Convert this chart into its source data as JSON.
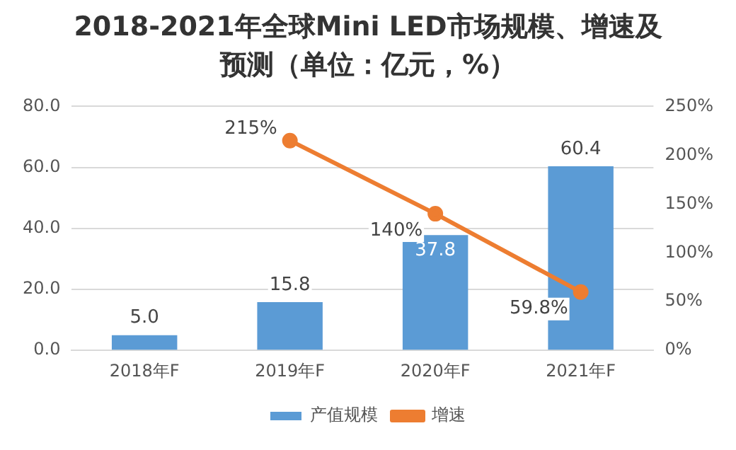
{
  "chart_data": {
    "type": "bar",
    "title": "2018-2021年全球Mini LED市场规模、增速及预测（单位：亿元，%）",
    "categories": [
      "2018年F",
      "2019年F",
      "2020年F",
      "2021年F"
    ],
    "series": [
      {
        "name": "产值规模",
        "color": "#5b9bd5",
        "values": [
          5.0,
          15.8,
          37.8,
          60.4
        ],
        "value_labels": [
          "5.0",
          "15.8",
          "37.8",
          "60.4"
        ]
      },
      {
        "name": "增速",
        "type": "line",
        "axis": "y2",
        "color": "#ed7d31",
        "marker": "circle",
        "values": [
          null,
          215,
          140,
          59.8
        ],
        "value_labels": [
          null,
          "215%",
          "140%",
          "59.8%"
        ]
      }
    ],
    "ylim": [
      0,
      80
    ],
    "yticks": [
      {
        "value": 0,
        "label": "0.0"
      },
      {
        "value": 20,
        "label": "20.0"
      },
      {
        "value": 40,
        "label": "40.0"
      },
      {
        "value": 60,
        "label": "60.0"
      },
      {
        "value": 80,
        "label": "80.0"
      }
    ],
    "y2lim": [
      0,
      250
    ],
    "y2ticks": [
      {
        "value": 0,
        "label": "0%"
      },
      {
        "value": 50,
        "label": "50%"
      },
      {
        "value": 100,
        "label": "100%"
      },
      {
        "value": 150,
        "label": "150%"
      },
      {
        "value": 200,
        "label": "200%"
      },
      {
        "value": 250,
        "label": "250%"
      }
    ],
    "grid": "y",
    "legend": "bottom"
  }
}
